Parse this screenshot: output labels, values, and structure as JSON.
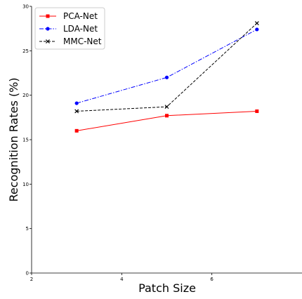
{
  "chart_data": {
    "type": "line",
    "title": "",
    "xlabel": "Patch Size",
    "ylabel": "Recognition Rates (%)",
    "xlim": [
      2,
      8
    ],
    "ylim": [
      0,
      30
    ],
    "x": [
      3,
      5,
      7
    ],
    "x_ticks": [
      2,
      4,
      6
    ],
    "y_ticks": [
      0,
      5,
      10,
      15,
      20,
      25,
      30
    ],
    "grid": false,
    "legend_position": "top-left",
    "series": [
      {
        "name": "PCA-Net",
        "values": [
          16.0,
          17.7,
          18.2
        ],
        "color": "#ff0000",
        "linestyle": "solid",
        "marker": "square"
      },
      {
        "name": "LDA-Net",
        "values": [
          19.1,
          22.0,
          27.4
        ],
        "color": "#0000ff",
        "linestyle": "dashdot",
        "marker": "circle"
      },
      {
        "name": "MMC-Net",
        "values": [
          18.2,
          18.7,
          28.1
        ],
        "color": "#000000",
        "linestyle": "dashed",
        "marker": "x"
      }
    ]
  }
}
